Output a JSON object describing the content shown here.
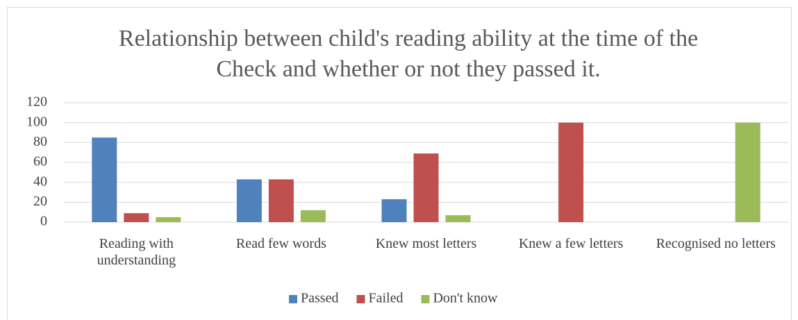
{
  "chart_data": {
    "type": "bar",
    "title": "Relationship between child's reading ability at the time of the Check and whether or not they passed it.",
    "categories": [
      "Reading with understanding",
      "Read few words",
      "Knew most letters",
      "Knew a few letters",
      "Recognised no letters"
    ],
    "series": [
      {
        "name": "Passed",
        "color": "#4f81bd",
        "values": [
          85,
          43,
          23,
          0,
          0
        ]
      },
      {
        "name": "Failed",
        "color": "#c0504d",
        "values": [
          9,
          43,
          69,
          100,
          0
        ]
      },
      {
        "name": "Don't know",
        "color": "#9bbb59",
        "values": [
          5,
          12,
          7,
          0,
          100
        ]
      }
    ],
    "ylim": [
      0,
      120
    ],
    "yticks": [
      0,
      20,
      40,
      60,
      80,
      100,
      120
    ],
    "grid": true,
    "legend": "bottom"
  }
}
